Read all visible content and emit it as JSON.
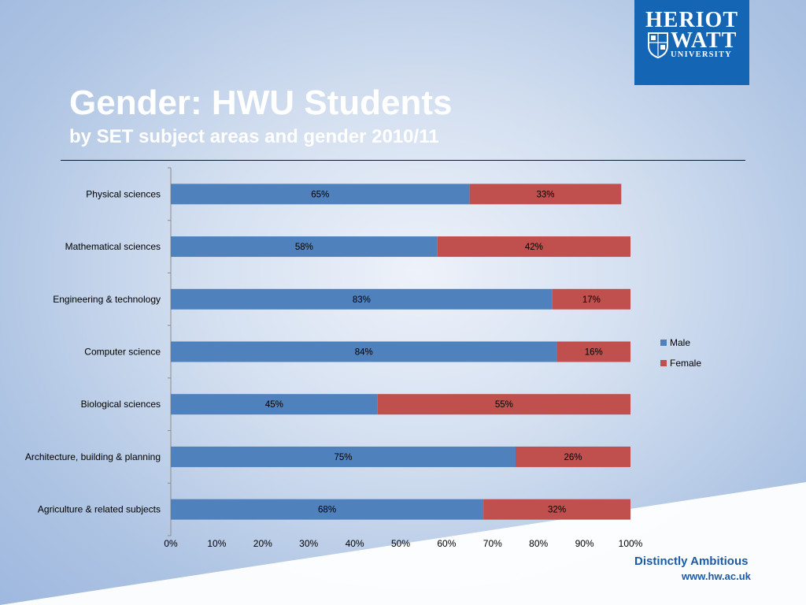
{
  "slide": {
    "title": "Gender: HWU Students",
    "subtitle": "by SET subject areas and gender 2010/11"
  },
  "logo": {
    "line1": "HERIOT",
    "line2": "WATT",
    "line3": "UNIVERSITY",
    "color": "#1565b5"
  },
  "footer": {
    "tagline": "Distinctly Ambitious",
    "url": "www.hw.ac.uk"
  },
  "chart_data": {
    "type": "bar",
    "orientation": "horizontal",
    "stacked": true,
    "categories": [
      "Physical sciences",
      "Mathematical sciences",
      "Engineering & technology",
      "Computer science",
      "Biological sciences",
      "Architecture, building & planning",
      "Agriculture & related subjects"
    ],
    "series": [
      {
        "name": "Male",
        "color": "#4f81bd",
        "values": [
          65,
          58,
          83,
          84,
          45,
          75,
          68
        ],
        "labels": [
          "65%",
          "58%",
          "83%",
          "84%",
          "45%",
          "75%",
          "68%"
        ]
      },
      {
        "name": "Female",
        "color": "#c0504d",
        "values": [
          33,
          42,
          17,
          16,
          55,
          26,
          32
        ],
        "labels": [
          "33%",
          "42%",
          "17%",
          "16%",
          "55%",
          "26%",
          "32%"
        ]
      }
    ],
    "xlim": [
      0,
      100
    ],
    "xticks": [
      "0%",
      "10%",
      "20%",
      "30%",
      "40%",
      "50%",
      "60%",
      "70%",
      "80%",
      "90%",
      "100%"
    ],
    "legend_position": "right",
    "grid": false,
    "data_labels": true
  }
}
